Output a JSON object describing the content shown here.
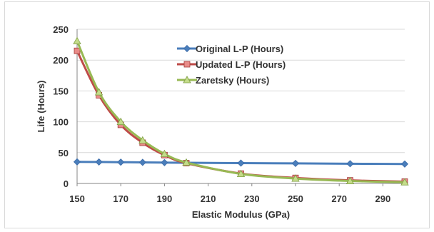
{
  "chart_data": {
    "type": "line",
    "title": "",
    "xlabel": "Elastic Modulus (GPa)",
    "ylabel": "Life (Hours)",
    "xlim": [
      150,
      300
    ],
    "ylim": [
      0,
      250
    ],
    "xticks": [
      150,
      170,
      190,
      210,
      230,
      250,
      270,
      290
    ],
    "yticks": [
      0,
      50,
      100,
      150,
      200,
      250
    ],
    "grid": "horizontal",
    "legend_position": "top-right (inside plot)",
    "series": [
      {
        "name": "Original L-P (Hours)",
        "color": "#4a7ebb",
        "marker": "diamond",
        "x": [
          150,
          160,
          170,
          180,
          190,
          200,
          225,
          250,
          275,
          300
        ],
        "y": [
          35,
          34.8,
          34.5,
          34.2,
          33.8,
          33.5,
          33,
          32.5,
          32,
          31.5
        ]
      },
      {
        "name": "Updated L-P (Hours)",
        "color": "#be4b48",
        "marker": "square",
        "x": [
          150,
          160,
          170,
          180,
          190,
          200,
          225,
          250,
          275,
          300
        ],
        "y": [
          215,
          143,
          95,
          66,
          46,
          33,
          16,
          9,
          5,
          3
        ]
      },
      {
        "name": "Zaretsky (Hours)",
        "color": "#98b954",
        "marker": "triangle",
        "x": [
          150,
          160,
          170,
          180,
          190,
          200,
          225,
          250,
          275,
          300
        ],
        "y": [
          231,
          148,
          100,
          70,
          48,
          34,
          15.5,
          8,
          4,
          2
        ]
      }
    ]
  }
}
